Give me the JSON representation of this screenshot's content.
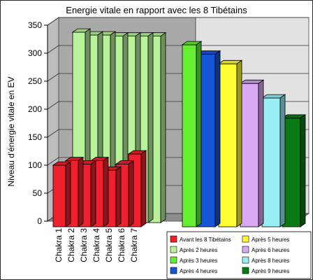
{
  "chart_data": {
    "type": "bar",
    "title": "Energie vitale en rapport avec les 8 Tibétains",
    "ylabel": "Niveau d'énergie vitale en EV",
    "xlabel": "",
    "ylim": [
      0,
      350
    ],
    "y_ticks": [
      0,
      50,
      100,
      150,
      200,
      250,
      300,
      350
    ],
    "grid": true,
    "legend_position": "bottom-right",
    "categories": [
      "Chakra 1",
      "Chakra 2",
      "Chakra 3",
      "Chakra 4",
      "Chakra 5",
      "Chakra 6",
      "Chakra 7"
    ],
    "series": [
      {
        "name": "Avant les 8 Tibétains",
        "color": "#f0202e",
        "values": [
          110,
          118,
          112,
          118,
          101,
          112,
          130
        ]
      },
      {
        "name": "Après 2 heures",
        "color": "#b8f29a",
        "values": [
          340,
          335,
          335,
          333,
          333,
          333,
          333
        ]
      },
      {
        "name": "Après 3 heures",
        "color": "#66ee33",
        "values": [
          325,
          325,
          325,
          325,
          325,
          325,
          325
        ]
      },
      {
        "name": "Après 4 heures",
        "color": "#1655d8",
        "values": [
          308,
          308,
          308,
          308,
          308,
          308,
          308
        ]
      },
      {
        "name": "Après 5 heures",
        "color": "#ffff33",
        "values": [
          291,
          291,
          291,
          291,
          291,
          291,
          291
        ]
      },
      {
        "name": "Après 6 heures",
        "color": "#d8a8f2",
        "values": [
          256,
          256,
          256,
          256,
          256,
          256,
          256
        ]
      },
      {
        "name": "Après 8 heures",
        "color": "#99eef6",
        "values": [
          230,
          230,
          230,
          230,
          230,
          230,
          230
        ]
      },
      {
        "name": "Après 9 heures",
        "color": "#0a7a15",
        "values": [
          194,
          194,
          194,
          194,
          194,
          194,
          194
        ]
      }
    ]
  }
}
